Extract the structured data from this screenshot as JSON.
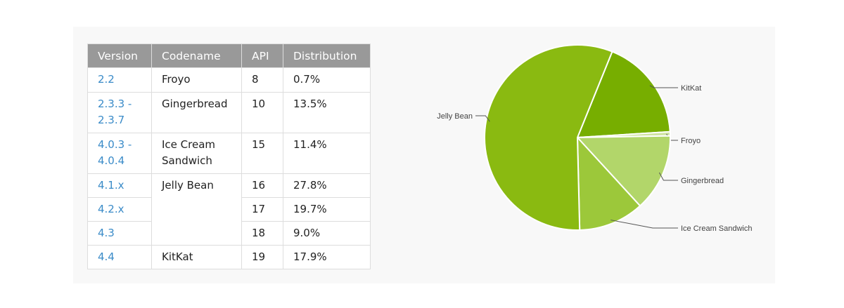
{
  "table": {
    "headers": [
      "Version",
      "Codename",
      "API",
      "Distribution"
    ],
    "rows": [
      {
        "version": [
          "2.2"
        ],
        "codename": [
          "Froyo"
        ],
        "api": "8",
        "dist": "0.7%"
      },
      {
        "version": [
          "2.3.3 -",
          "2.3.7"
        ],
        "codename": [
          "Gingerbread"
        ],
        "api": "10",
        "dist": "13.5%"
      },
      {
        "version": [
          "4.0.3 -",
          "4.0.4"
        ],
        "codename": [
          "Ice Cream",
          "Sandwich"
        ],
        "api": "15",
        "dist": "11.4%"
      },
      {
        "version": [
          "4.1.x"
        ],
        "codename": [
          "Jelly Bean"
        ],
        "api": "16",
        "dist": "27.8%"
      },
      {
        "version": [
          "4.2.x"
        ],
        "codename": [],
        "api": "17",
        "dist": "19.7%"
      },
      {
        "version": [
          "4.3"
        ],
        "codename": [],
        "api": "18",
        "dist": "9.0%"
      },
      {
        "version": [
          "4.4"
        ],
        "codename": [
          "KitKat"
        ],
        "api": "19",
        "dist": "17.9%"
      }
    ]
  },
  "chart_data": {
    "type": "pie",
    "slices": [
      {
        "label": "KitKat",
        "value": 17.9,
        "color": "#77ae00"
      },
      {
        "label": "Froyo",
        "value": 0.7,
        "color": "#cfe3a0"
      },
      {
        "label": "Gingerbread",
        "value": 13.5,
        "color": "#b2d66a"
      },
      {
        "label": "Ice Cream Sandwich",
        "value": 11.4,
        "color": "#9cc83a"
      },
      {
        "label": "Jelly Bean",
        "value": 56.5,
        "color": "#8aba11"
      }
    ],
    "start_angle_deg": 22,
    "direction": "clockwise",
    "label_leaders": "horizontal"
  }
}
